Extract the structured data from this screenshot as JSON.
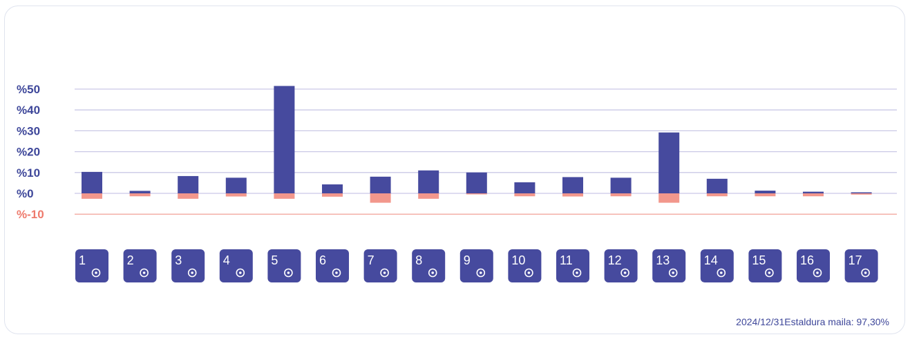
{
  "colors": {
    "positive": "#464a9e",
    "negative": "#f2978c",
    "gridline": "#c9c8e6",
    "negative_gridline": "#f2a89f",
    "tile": "#464a9e",
    "axis_label": "#3e479a",
    "negative_label": "#ee7a6c"
  },
  "chart_data": {
    "type": "bar",
    "ylim": [
      -10,
      50
    ],
    "yticks": [
      {
        "value": 50,
        "label": "%50"
      },
      {
        "value": 40,
        "label": "%40"
      },
      {
        "value": 30,
        "label": "%30"
      },
      {
        "value": 20,
        "label": "%20"
      },
      {
        "value": 10,
        "label": "%10"
      },
      {
        "value": 0,
        "label": "%0"
      },
      {
        "value": -10,
        "label": "%-10"
      }
    ],
    "categories": [
      "1",
      "2",
      "3",
      "4",
      "5",
      "6",
      "7",
      "8",
      "9",
      "10",
      "11",
      "12",
      "13",
      "14",
      "15",
      "16",
      "17"
    ],
    "category_icons": [
      "no-poverty-icon",
      "zero-hunger-icon",
      "good-health-icon",
      "quality-education-icon",
      "gender-equality-icon",
      "clean-water-icon",
      "clean-energy-icon",
      "decent-work-icon",
      "industry-innovation-icon",
      "reduced-inequalities-icon",
      "sustainable-cities-icon",
      "responsible-consumption-icon",
      "climate-action-icon",
      "life-below-water-icon",
      "life-on-land-icon",
      "peace-justice-icon",
      "partnerships-icon"
    ],
    "series": [
      {
        "values": [
          10.3,
          1.2,
          8.3,
          7.5,
          51.5,
          4.3,
          8.0,
          11.0,
          10.0,
          5.3,
          7.8,
          7.5,
          29.2,
          7.0,
          1.3,
          0.8,
          0.5
        ]
      },
      {
        "values": [
          -2.6,
          -1.4,
          -2.6,
          -1.5,
          -2.6,
          -1.6,
          -4.5,
          -2.6,
          -0.5,
          -1.4,
          -1.5,
          -1.4,
          -4.5,
          -1.4,
          -1.4,
          -1.4,
          -0.6
        ]
      }
    ]
  },
  "footer": {
    "text": "2024/12/31Estaldura maila: 97,30%"
  }
}
